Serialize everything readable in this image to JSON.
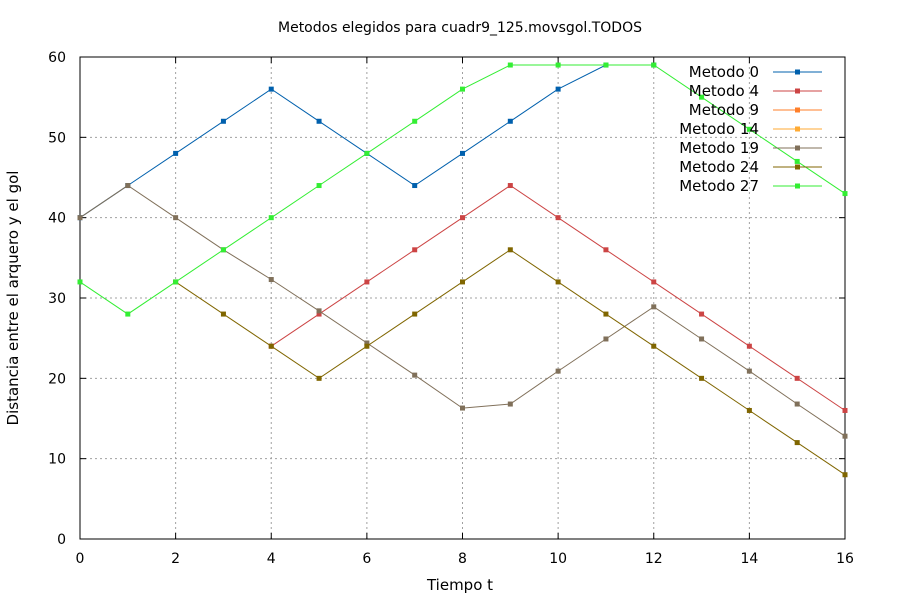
{
  "chart_data": {
    "type": "line",
    "title": "Metodos elegidos para cuadr9_125.movsgol.TODOS",
    "xlabel": "Tiempo t",
    "ylabel": "Distancia entre el arquero y el gol",
    "xlim": [
      0,
      16
    ],
    "ylim": [
      0,
      60
    ],
    "xticks": [
      0,
      2,
      4,
      6,
      8,
      10,
      12,
      14,
      16
    ],
    "yticks": [
      0,
      10,
      20,
      30,
      40,
      50,
      60
    ],
    "grid": true,
    "legend_position": "top-right",
    "series": [
      {
        "name": "Metodo 0",
        "color": "#0060ad",
        "points": [
          [
            0,
            40
          ],
          [
            1,
            44
          ],
          [
            2,
            48
          ],
          [
            3,
            52
          ],
          [
            4,
            56
          ],
          [
            5,
            52
          ],
          [
            6,
            48
          ],
          [
            7,
            44
          ],
          [
            8,
            48
          ],
          [
            9,
            52
          ],
          [
            10,
            56
          ],
          [
            11,
            59
          ],
          [
            12,
            59
          ]
        ]
      },
      {
        "name": "Metodo 4",
        "color": "#cc4444",
        "points": [
          [
            4,
            24
          ],
          [
            5,
            28
          ],
          [
            6,
            32
          ],
          [
            7,
            36
          ],
          [
            8,
            40
          ],
          [
            9,
            44
          ],
          [
            10,
            40
          ],
          [
            11,
            36
          ],
          [
            12,
            32
          ],
          [
            13,
            28
          ],
          [
            14,
            24
          ],
          [
            15,
            20
          ],
          [
            16,
            16
          ]
        ]
      },
      {
        "name": "Metodo 9",
        "color": "#ff7f2a",
        "points": []
      },
      {
        "name": "Metodo 14",
        "color": "#ffaa33",
        "points": []
      },
      {
        "name": "Metodo 19",
        "color": "#80705a",
        "points": [
          [
            0,
            40
          ],
          [
            1,
            44
          ],
          [
            2,
            40
          ],
          [
            3,
            36
          ],
          [
            4,
            32.3
          ],
          [
            5,
            28.4
          ],
          [
            6,
            24.4
          ],
          [
            7,
            20.4
          ],
          [
            8,
            16.3
          ],
          [
            9,
            16.8
          ],
          [
            10,
            20.9
          ],
          [
            11,
            24.9
          ],
          [
            12,
            28.9
          ],
          [
            13,
            24.9
          ],
          [
            14,
            20.9
          ],
          [
            15,
            16.8
          ],
          [
            16,
            12.8
          ]
        ]
      },
      {
        "name": "Metodo 24",
        "color": "#806600",
        "points": [
          [
            2,
            32
          ],
          [
            3,
            28
          ],
          [
            4,
            24
          ],
          [
            5,
            20
          ],
          [
            6,
            24
          ],
          [
            7,
            28
          ],
          [
            8,
            32
          ],
          [
            9,
            36
          ],
          [
            10,
            32
          ],
          [
            11,
            28
          ],
          [
            12,
            24
          ],
          [
            13,
            20
          ],
          [
            14,
            16
          ],
          [
            15,
            12
          ],
          [
            16,
            8
          ]
        ]
      },
      {
        "name": "Metodo 27",
        "color": "#33ee33",
        "points": [
          [
            0,
            32
          ],
          [
            1,
            28
          ],
          [
            2,
            32
          ],
          [
            3,
            36
          ],
          [
            4,
            40
          ],
          [
            5,
            44
          ],
          [
            6,
            48
          ],
          [
            7,
            52
          ],
          [
            8,
            56
          ],
          [
            9,
            59
          ],
          [
            10,
            59
          ],
          [
            11,
            59
          ],
          [
            12,
            59
          ],
          [
            13,
            55
          ],
          [
            14,
            51
          ],
          [
            15,
            47
          ],
          [
            16,
            43
          ]
        ]
      }
    ]
  }
}
